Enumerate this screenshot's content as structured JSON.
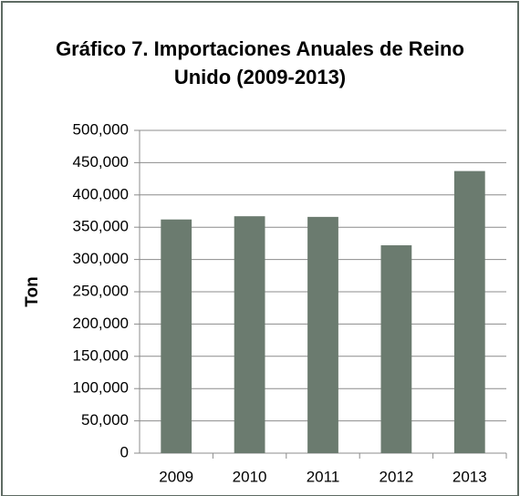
{
  "chart_data": {
    "type": "bar",
    "title": "Gráfico 7. Importaciones Anuales de Reino Unido (2009-2013)",
    "y_label": "Ton",
    "categories": [
      "2009",
      "2010",
      "2011",
      "2012",
      "2013"
    ],
    "values": [
      362000,
      367000,
      366000,
      322000,
      437000
    ],
    "color": "#6b7b6f",
    "ylim": [
      0,
      500000
    ],
    "yticks": [
      0,
      {
        "value": 50000,
        "label": "50,000"
      },
      {
        "value": 100000,
        "label": "100,000"
      },
      {
        "value": 150000,
        "label": "150,000"
      },
      {
        "value": 200000,
        "label": "200,000"
      },
      {
        "value": 250000,
        "label": "250,000"
      },
      {
        "value": 300000,
        "label": "300,000"
      },
      {
        "value": 350000,
        "label": "350,000"
      },
      {
        "value": 400000,
        "label": "400,000"
      },
      {
        "value": 450000,
        "label": "450,000"
      },
      {
        "value": 500000,
        "label": "500,000"
      }
    ],
    "grid": true
  }
}
